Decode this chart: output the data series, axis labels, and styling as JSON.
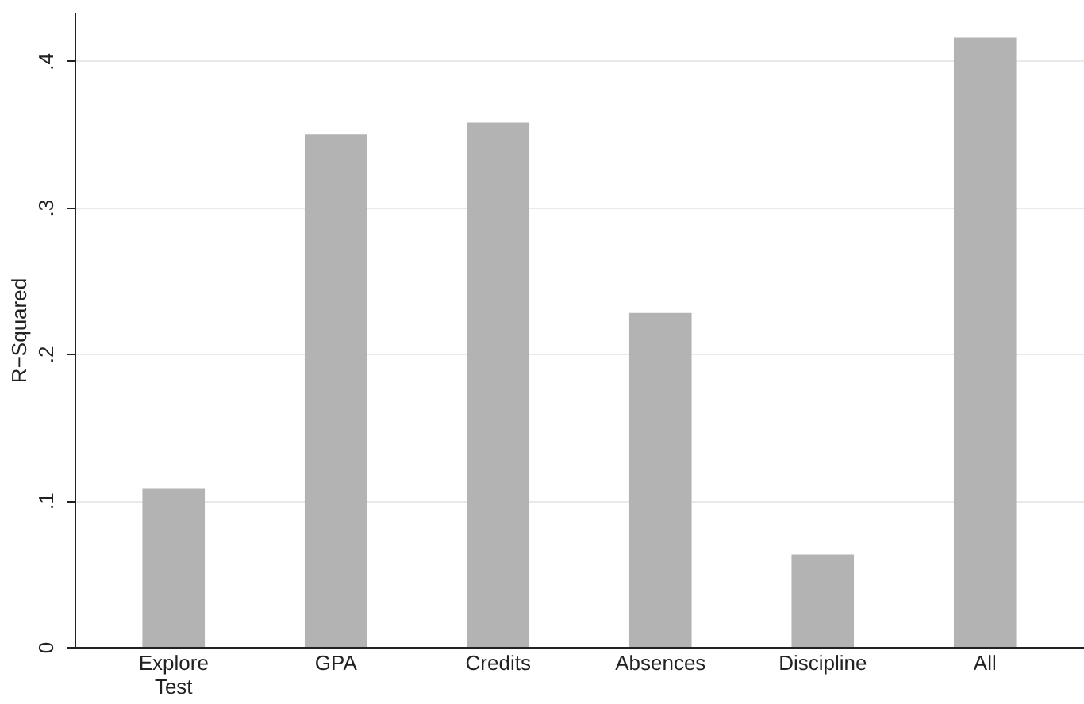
{
  "chart_data": {
    "type": "bar",
    "ylabel": "R−Squared",
    "categories": [
      "Explore Test",
      "GPA",
      "Credits",
      "Absences",
      "Discipline",
      "All"
    ],
    "values": [
      0.108,
      0.35,
      0.358,
      0.228,
      0.063,
      0.416
    ],
    "color": "#b3b3b3",
    "ylim": [
      0,
      0.433
    ],
    "yticks": [
      0,
      {
        "value": 0.1,
        "label": ".1"
      },
      {
        "value": 0.2,
        "label": ".2"
      },
      {
        "value": 0.3,
        "label": ".3"
      },
      {
        "value": 0.4,
        "label": ".4"
      }
    ],
    "grid": "y"
  }
}
